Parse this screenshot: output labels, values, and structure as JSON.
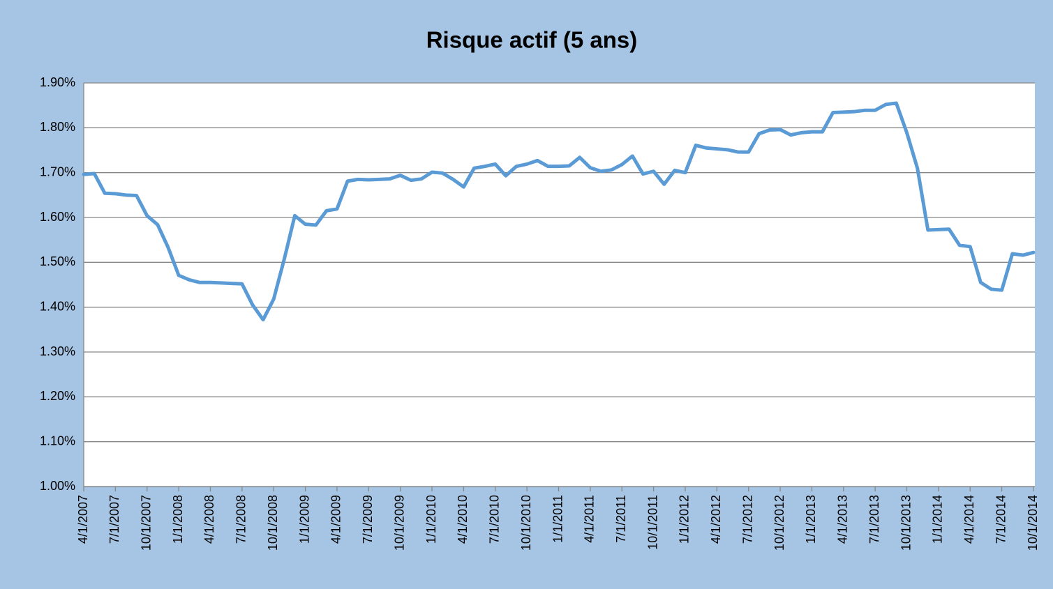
{
  "chart_data": {
    "type": "line",
    "title": "Risque actif (5 ans)",
    "categories": [
      "4/1/2007",
      null,
      null,
      "7/1/2007",
      null,
      null,
      "10/1/2007",
      null,
      null,
      "1/1/2008",
      null,
      null,
      "4/1/2008",
      null,
      null,
      "7/1/2008",
      null,
      null,
      "10/1/2008",
      null,
      null,
      "1/1/2009",
      null,
      null,
      "4/1/2009",
      null,
      null,
      "7/1/2009",
      null,
      null,
      "10/1/2009",
      null,
      null,
      "1/1/2010",
      null,
      null,
      "4/1/2010",
      null,
      null,
      "7/1/2010",
      null,
      null,
      "10/1/2010",
      null,
      null,
      "1/1/2011",
      null,
      null,
      "4/1/2011",
      null,
      null,
      "7/1/2011",
      null,
      null,
      "10/1/2011",
      null,
      null,
      "1/1/2012",
      null,
      null,
      "4/1/2012",
      null,
      null,
      "7/1/2012",
      null,
      null,
      "10/1/2012",
      null,
      null,
      "1/1/2013",
      null,
      null,
      "4/1/2013",
      null,
      null,
      "7/1/2013",
      null,
      null,
      "10/1/2013",
      null,
      null,
      "1/1/2014",
      null,
      null,
      "4/1/2014",
      null,
      null,
      "7/1/2014",
      null,
      null,
      "10/1/2014"
    ],
    "series": [
      {
        "name": "Risque actif",
        "color": "#5b9bd5",
        "values": [
          1.696,
          1.698,
          1.654,
          1.653,
          1.65,
          1.649,
          1.604,
          1.584,
          1.533,
          1.471,
          1.461,
          1.455,
          1.455,
          1.454,
          1.453,
          1.452,
          1.405,
          1.372,
          1.418,
          1.507,
          1.604,
          1.585,
          1.583,
          1.615,
          1.619,
          1.681,
          1.685,
          1.684,
          1.685,
          1.686,
          1.694,
          1.683,
          1.686,
          1.701,
          1.699,
          1.685,
          1.668,
          1.71,
          1.714,
          1.719,
          1.693,
          1.714,
          1.719,
          1.727,
          1.714,
          1.714,
          1.715,
          1.734,
          1.711,
          1.703,
          1.706,
          1.718,
          1.737,
          1.697,
          1.703,
          1.674,
          1.705,
          1.7,
          1.761,
          1.755,
          1.753,
          1.751,
          1.746,
          1.746,
          1.787,
          1.795,
          1.796,
          1.784,
          1.789,
          1.791,
          1.791,
          1.834,
          1.835,
          1.836,
          1.839,
          1.839,
          1.852,
          1.855,
          1.789,
          1.71,
          1.572,
          1.573,
          1.574,
          1.538,
          1.535,
          1.455,
          1.44,
          1.438,
          1.519,
          1.516,
          1.522
        ]
      }
    ],
    "ylim": [
      1.0,
      1.9
    ],
    "yticks": [
      {
        "value": 1.0,
        "label": "1.00%"
      },
      {
        "value": 1.1,
        "label": "1.10%"
      },
      {
        "value": 1.2,
        "label": "1.20%"
      },
      {
        "value": 1.3,
        "label": "1.30%"
      },
      {
        "value": 1.4,
        "label": "1.40%"
      },
      {
        "value": 1.5,
        "label": "1.50%"
      },
      {
        "value": 1.6,
        "label": "1.60%"
      },
      {
        "value": 1.7,
        "label": "1.70%"
      },
      {
        "value": 1.8,
        "label": "1.80%"
      },
      {
        "value": 1.9,
        "label": "1.90%"
      }
    ],
    "grid": true
  }
}
